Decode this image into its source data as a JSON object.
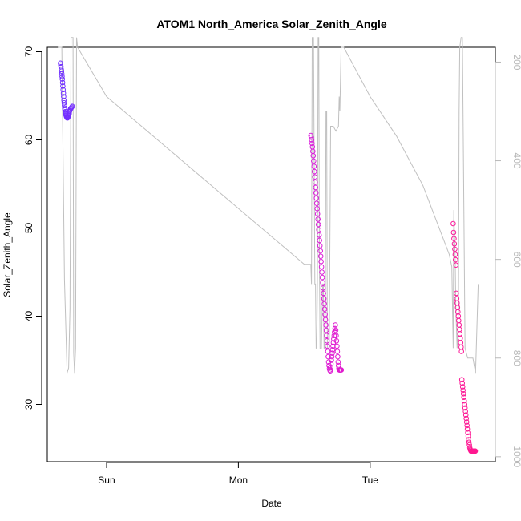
{
  "chart_data": {
    "type": "scatter",
    "title": "ATOM1 North_America Solar_Zenith_Angle",
    "xlabel": "Date",
    "ylabel": "Solar_Zenith_Angle",
    "x_tick_labels": [
      "Sun",
      "Mon",
      "Tue"
    ],
    "x_tick_positions_days": [
      1,
      2,
      3
    ],
    "xlim_days": [
      0.55,
      3.95
    ],
    "ylim": [
      23.5,
      70.5
    ],
    "yticks": [
      30,
      40,
      50,
      60,
      70
    ],
    "y2lim": [
      1010,
      170
    ],
    "y2ticks": [
      200,
      400,
      600,
      800,
      1000
    ],
    "grid": false,
    "colors": {
      "secondary_line": "#c0c0c0",
      "gradient_start": "#7030ff",
      "gradient_mid": "#d020f0",
      "gradient_end": "#ff1890"
    },
    "series": [
      {
        "kind": "points",
        "day": "Sat-Sun",
        "x": [
          0.65,
          0.652,
          0.654,
          0.656,
          0.658,
          0.66,
          0.662,
          0.664,
          0.666,
          0.668,
          0.67,
          0.672,
          0.674,
          0.676,
          0.678,
          0.68,
          0.682,
          0.684,
          0.686,
          0.688,
          0.69,
          0.692,
          0.694,
          0.696,
          0.698,
          0.7,
          0.702,
          0.704,
          0.706,
          0.708,
          0.71,
          0.712,
          0.714,
          0.716,
          0.718,
          0.72,
          0.725,
          0.73,
          0.735,
          0.74
        ],
        "y": [
          68.7,
          68.5,
          68.3,
          68.0,
          67.8,
          67.5,
          67.2,
          66.9,
          66.5,
          66.1,
          65.7,
          65.3,
          64.9,
          64.5,
          64.2,
          63.9,
          63.6,
          63.4,
          63.2,
          63.0,
          62.9,
          62.8,
          62.7,
          62.6,
          62.6,
          62.5,
          62.5,
          62.5,
          62.6,
          62.6,
          62.7,
          62.8,
          62.9,
          63.0,
          63.2,
          63.3,
          63.5,
          63.6,
          63.7,
          63.8
        ]
      },
      {
        "kind": "points",
        "day": "Mon-Tue",
        "x": [
          2.55,
          2.553,
          2.556,
          2.559,
          2.562,
          2.565,
          2.568,
          2.571,
          2.574,
          2.577,
          2.58,
          2.583,
          2.586,
          2.589,
          2.592,
          2.595,
          2.598,
          2.601,
          2.604,
          2.607,
          2.61,
          2.613,
          2.616,
          2.619,
          2.622,
          2.625,
          2.628,
          2.631,
          2.634,
          2.637,
          2.64,
          2.643,
          2.646,
          2.649,
          2.652,
          2.655,
          2.658,
          2.661,
          2.664,
          2.667,
          2.67,
          2.673,
          2.676,
          2.679,
          2.682,
          2.685,
          2.688,
          2.691,
          2.694,
          2.697,
          2.7,
          2.703,
          2.706,
          2.709,
          2.712,
          2.715,
          2.718,
          2.721,
          2.724,
          2.727,
          2.73,
          2.733,
          2.736,
          2.739,
          2.742,
          2.745,
          2.748,
          2.751,
          2.754,
          2.757,
          2.76,
          2.763,
          2.766,
          2.769,
          2.772,
          2.775,
          2.778,
          2.781
        ],
        "y": [
          60.5,
          60.3,
          60.0,
          59.6,
          59.2,
          58.7,
          58.2,
          57.6,
          57.0,
          56.4,
          55.8,
          55.2,
          54.6,
          54.0,
          53.4,
          52.8,
          52.2,
          51.6,
          51.0,
          50.4,
          49.8,
          49.2,
          48.6,
          48.0,
          47.4,
          46.8,
          46.2,
          45.6,
          45.0,
          44.4,
          43.8,
          43.2,
          42.6,
          42.0,
          41.4,
          40.8,
          40.2,
          39.6,
          39.0,
          38.4,
          37.8,
          37.2,
          36.6,
          36.0,
          35.4,
          34.8,
          34.4,
          34.1,
          33.9,
          33.8,
          34.2,
          34.6,
          35.0,
          35.4,
          35.8,
          36.2,
          36.6,
          37.0,
          37.4,
          37.8,
          38.2,
          38.6,
          39.0,
          38.4,
          37.8,
          37.2,
          36.6,
          36.0,
          35.4,
          34.8,
          34.4,
          34.1,
          33.9,
          33.9,
          33.9,
          33.9,
          33.9,
          33.9
        ]
      },
      {
        "kind": "points",
        "day": "Tue-Wed",
        "x": [
          3.63,
          3.633,
          3.636,
          3.639,
          3.642,
          3.645,
          3.648,
          3.651,
          3.654,
          3.657,
          3.66,
          3.663,
          3.666,
          3.669,
          3.672,
          3.675,
          3.678,
          3.681,
          3.684,
          3.687,
          3.69,
          3.693,
          3.696,
          3.699,
          3.702,
          3.705,
          3.708,
          3.711,
          3.714,
          3.717,
          3.72,
          3.723,
          3.726,
          3.729,
          3.732,
          3.735,
          3.738,
          3.741,
          3.744,
          3.747,
          3.75,
          3.753,
          3.756,
          3.759,
          3.762,
          3.765,
          3.768,
          3.771,
          3.774,
          3.777,
          3.78,
          3.783,
          3.786,
          3.789,
          3.792,
          3.795,
          3.798
        ],
        "y": [
          50.5,
          49.5,
          48.8,
          48.2,
          47.6,
          47.0,
          46.4,
          45.8,
          42.6,
          42.0,
          41.5,
          41.0,
          40.5,
          40.0,
          39.5,
          39.0,
          38.5,
          38.0,
          37.5,
          37.0,
          36.5,
          36.0,
          32.8,
          32.4,
          32.0,
          31.6,
          31.2,
          30.8,
          30.4,
          30.0,
          29.6,
          29.2,
          28.8,
          28.4,
          28.0,
          27.6,
          27.2,
          26.8,
          26.4,
          26.0,
          25.7,
          25.4,
          25.1,
          24.9,
          24.8,
          24.7,
          24.7,
          24.7,
          24.7,
          24.7,
          24.7,
          24.7,
          24.7,
          24.7,
          24.7,
          24.7,
          24.7
        ]
      },
      {
        "kind": "line",
        "axis": "right",
        "x": [
          0.63,
          0.66,
          0.68,
          0.7,
          0.712,
          0.722,
          0.73,
          0.735,
          0.74,
          0.745,
          0.75,
          0.757,
          0.765,
          0.772,
          0.78,
          1.0,
          2.5,
          2.54,
          2.55,
          2.555,
          2.56,
          2.565,
          2.57,
          2.58,
          2.585,
          2.59,
          2.595,
          2.6,
          2.605,
          2.61,
          2.615,
          2.62,
          2.63,
          2.64,
          2.645,
          2.65,
          2.655,
          2.66,
          2.665,
          2.67,
          2.675,
          2.68,
          2.69,
          2.7,
          2.72,
          2.74,
          2.76,
          2.765,
          2.77,
          2.78,
          2.8,
          3.0,
          3.2,
          3.4,
          3.6,
          3.62,
          3.63,
          3.635,
          3.64,
          3.645,
          3.65,
          3.66,
          3.67,
          3.675,
          3.68,
          3.69,
          3.7,
          3.72,
          3.74,
          3.76,
          3.78,
          3.8,
          3.82
        ],
        "y": [
          170,
          170,
          640,
          830,
          820,
          700,
          150,
          150,
          150,
          150,
          790,
          830,
          780,
          150,
          170,
          270,
          610,
          610,
          610,
          650,
          150,
          150,
          150,
          650,
          650,
          780,
          780,
          650,
          150,
          150,
          600,
          780,
          780,
          650,
          650,
          780,
          780,
          700,
          300,
          300,
          780,
          780,
          780,
          330,
          330,
          340,
          330,
          270,
          300,
          170,
          170,
          270,
          350,
          450,
          590,
          615,
          780,
          500,
          550,
          600,
          700,
          780,
          700,
          300,
          170,
          150,
          150,
          780,
          800,
          800,
          800,
          830,
          650
        ]
      }
    ]
  }
}
